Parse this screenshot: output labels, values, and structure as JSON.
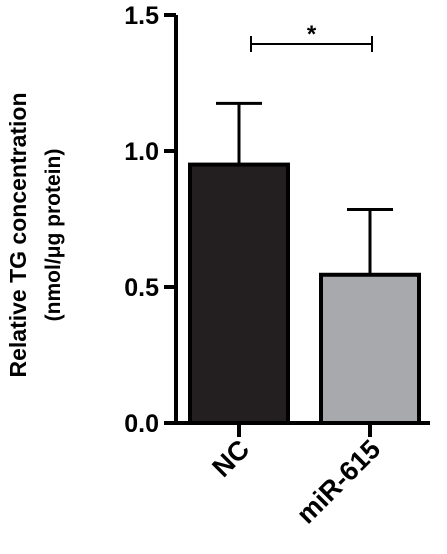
{
  "chart_data": {
    "type": "bar",
    "categories": [
      "NC",
      "miR-615"
    ],
    "values": [
      0.95,
      0.545
    ],
    "error_upper": [
      1.175,
      0.785
    ],
    "bar_colors": [
      "#231f20",
      "#a7a9ac"
    ],
    "ylabel_line1": "Relative TG concentration",
    "ylabel_line2": "(nmol/μg protein)",
    "ylim": [
      0,
      1.5
    ],
    "yticks": [
      "0.0",
      "0.5",
      "1.0",
      "1.5"
    ],
    "ytick_values": [
      0,
      0.5,
      1.0,
      1.5
    ],
    "significance": {
      "label": "*",
      "between": [
        "NC",
        "miR-615"
      ]
    }
  }
}
